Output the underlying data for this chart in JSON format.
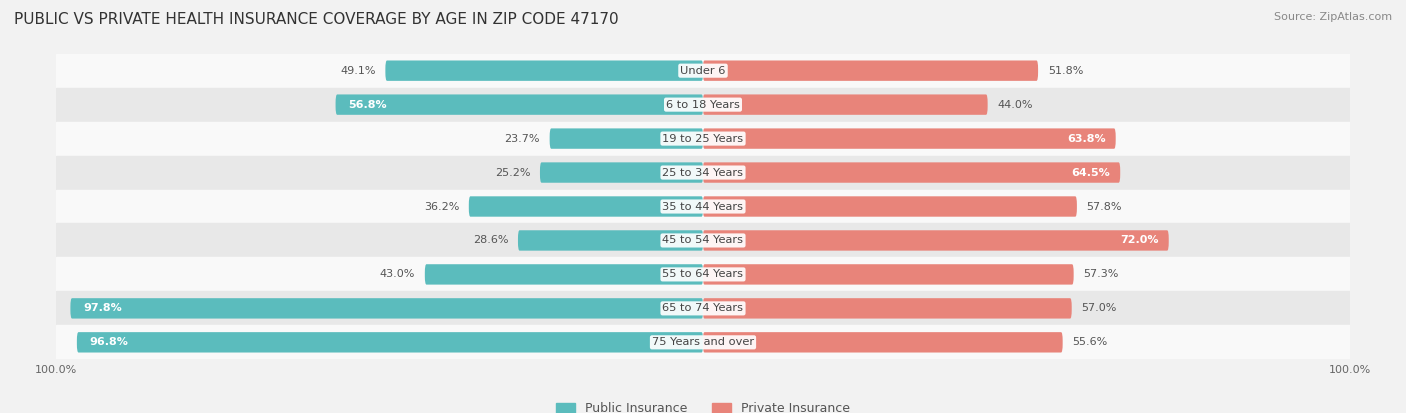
{
  "title": "PUBLIC VS PRIVATE HEALTH INSURANCE COVERAGE BY AGE IN ZIP CODE 47170",
  "source": "Source: ZipAtlas.com",
  "categories": [
    "Under 6",
    "6 to 18 Years",
    "19 to 25 Years",
    "25 to 34 Years",
    "35 to 44 Years",
    "45 to 54 Years",
    "55 to 64 Years",
    "65 to 74 Years",
    "75 Years and over"
  ],
  "public_values": [
    49.1,
    56.8,
    23.7,
    25.2,
    36.2,
    28.6,
    43.0,
    97.8,
    96.8
  ],
  "private_values": [
    51.8,
    44.0,
    63.8,
    64.5,
    57.8,
    72.0,
    57.3,
    57.0,
    55.6
  ],
  "public_color": "#5bbcbd",
  "private_color": "#e8847a",
  "background_color": "#f2f2f2",
  "row_bg_light": "#f9f9f9",
  "row_bg_dark": "#e8e8e8",
  "title_fontsize": 11,
  "label_fontsize": 8.2,
  "value_fontsize": 8,
  "legend_fontsize": 9,
  "axis_label_fontsize": 8,
  "max_value": 100.0,
  "pub_white_threshold": 50,
  "priv_white_threshold": 58
}
